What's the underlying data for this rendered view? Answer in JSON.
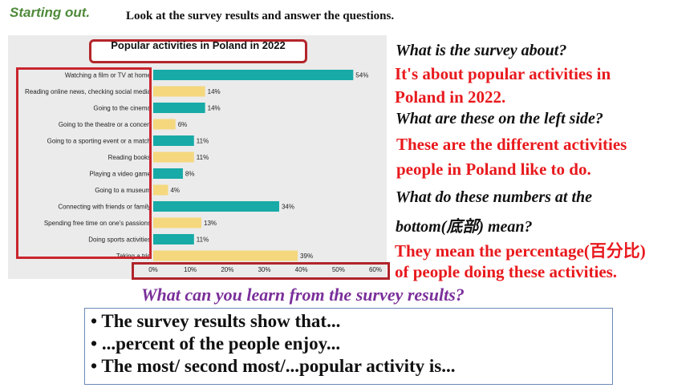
{
  "heading": "Starting out.",
  "instruction": "Look at the survey results and answer the questions.",
  "chart_data": {
    "type": "bar",
    "orientation": "horizontal",
    "title": "Popular activities in Poland in 2022",
    "categories": [
      "Watching a film or TV at home",
      "Reading online news, checking social media",
      "Going to the cinema",
      "Going to the theatre or a concert",
      "Going to a sporting event or a match",
      "Reading books",
      "Playing a video game",
      "Going to a museum",
      "Connecting with friends or family",
      "Spending free time on one's passions",
      "Doing sports activities",
      "Taking a trip"
    ],
    "values": [
      54,
      14,
      14,
      6,
      11,
      11,
      8,
      4,
      34,
      13,
      11,
      39
    ],
    "value_labels": [
      "54%",
      "14%",
      "14%",
      "6%",
      "11%",
      "11%",
      "8%",
      "4%",
      "34%",
      "13%",
      "11%",
      "39%"
    ],
    "bar_colors": [
      "#17aaa6",
      "#f5d77e",
      "#17aaa6",
      "#f5d77e",
      "#17aaa6",
      "#f5d77e",
      "#17aaa6",
      "#f5d77e",
      "#17aaa6",
      "#f5d77e",
      "#17aaa6",
      "#f5d77e"
    ],
    "xlim": [
      0,
      60
    ],
    "x_ticks": [
      "0%",
      "10%",
      "20%",
      "30%",
      "40%",
      "50%",
      "60%"
    ],
    "grid": false
  },
  "qa": {
    "q1": "What is the survey about?",
    "a1_line1": "It's about popular activities in",
    "a1_line2": "Poland in 2022.",
    "q2": "What are these on the left side?",
    "a2_line1": "These are the different activities",
    "a2_line2": "people in Poland like to do.",
    "q3_line1": "What do these numbers at the",
    "q3_line2": "bottom(底部) mean?",
    "a3_line1": "They mean the percentage(百分比)",
    "a3_line2": "of people doing these activities."
  },
  "question2": "What can you learn from the survey results?",
  "bullets": [
    "The survey results show that...",
    "...percent of the people enjoy...",
    "The most/ second most/...popular activity is..."
  ],
  "colors": {
    "teal": "#17aaa6",
    "yellow": "#f5d77e",
    "red": "#e8191d",
    "purple": "#7a2f9a",
    "frame": "#c9252e"
  }
}
